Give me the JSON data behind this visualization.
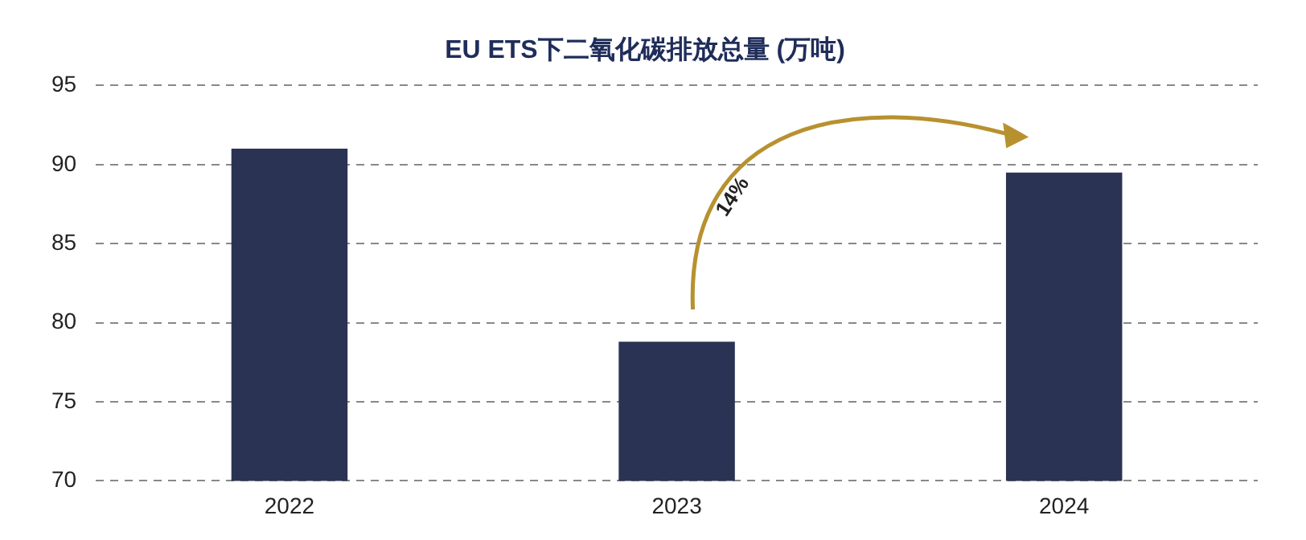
{
  "chart_data": {
    "type": "bar",
    "title": "EU ETS下二氧化碳排放总量 (万吨)",
    "categories": [
      "2022",
      "2023",
      "2024"
    ],
    "values": [
      91.0,
      78.8,
      89.5
    ],
    "color": "#2a3353",
    "ylim": [
      70,
      95
    ],
    "yticks": [
      70,
      75,
      80,
      85,
      90,
      95
    ],
    "grid": "y",
    "legend": false,
    "annotations": [
      "14%"
    ]
  }
}
